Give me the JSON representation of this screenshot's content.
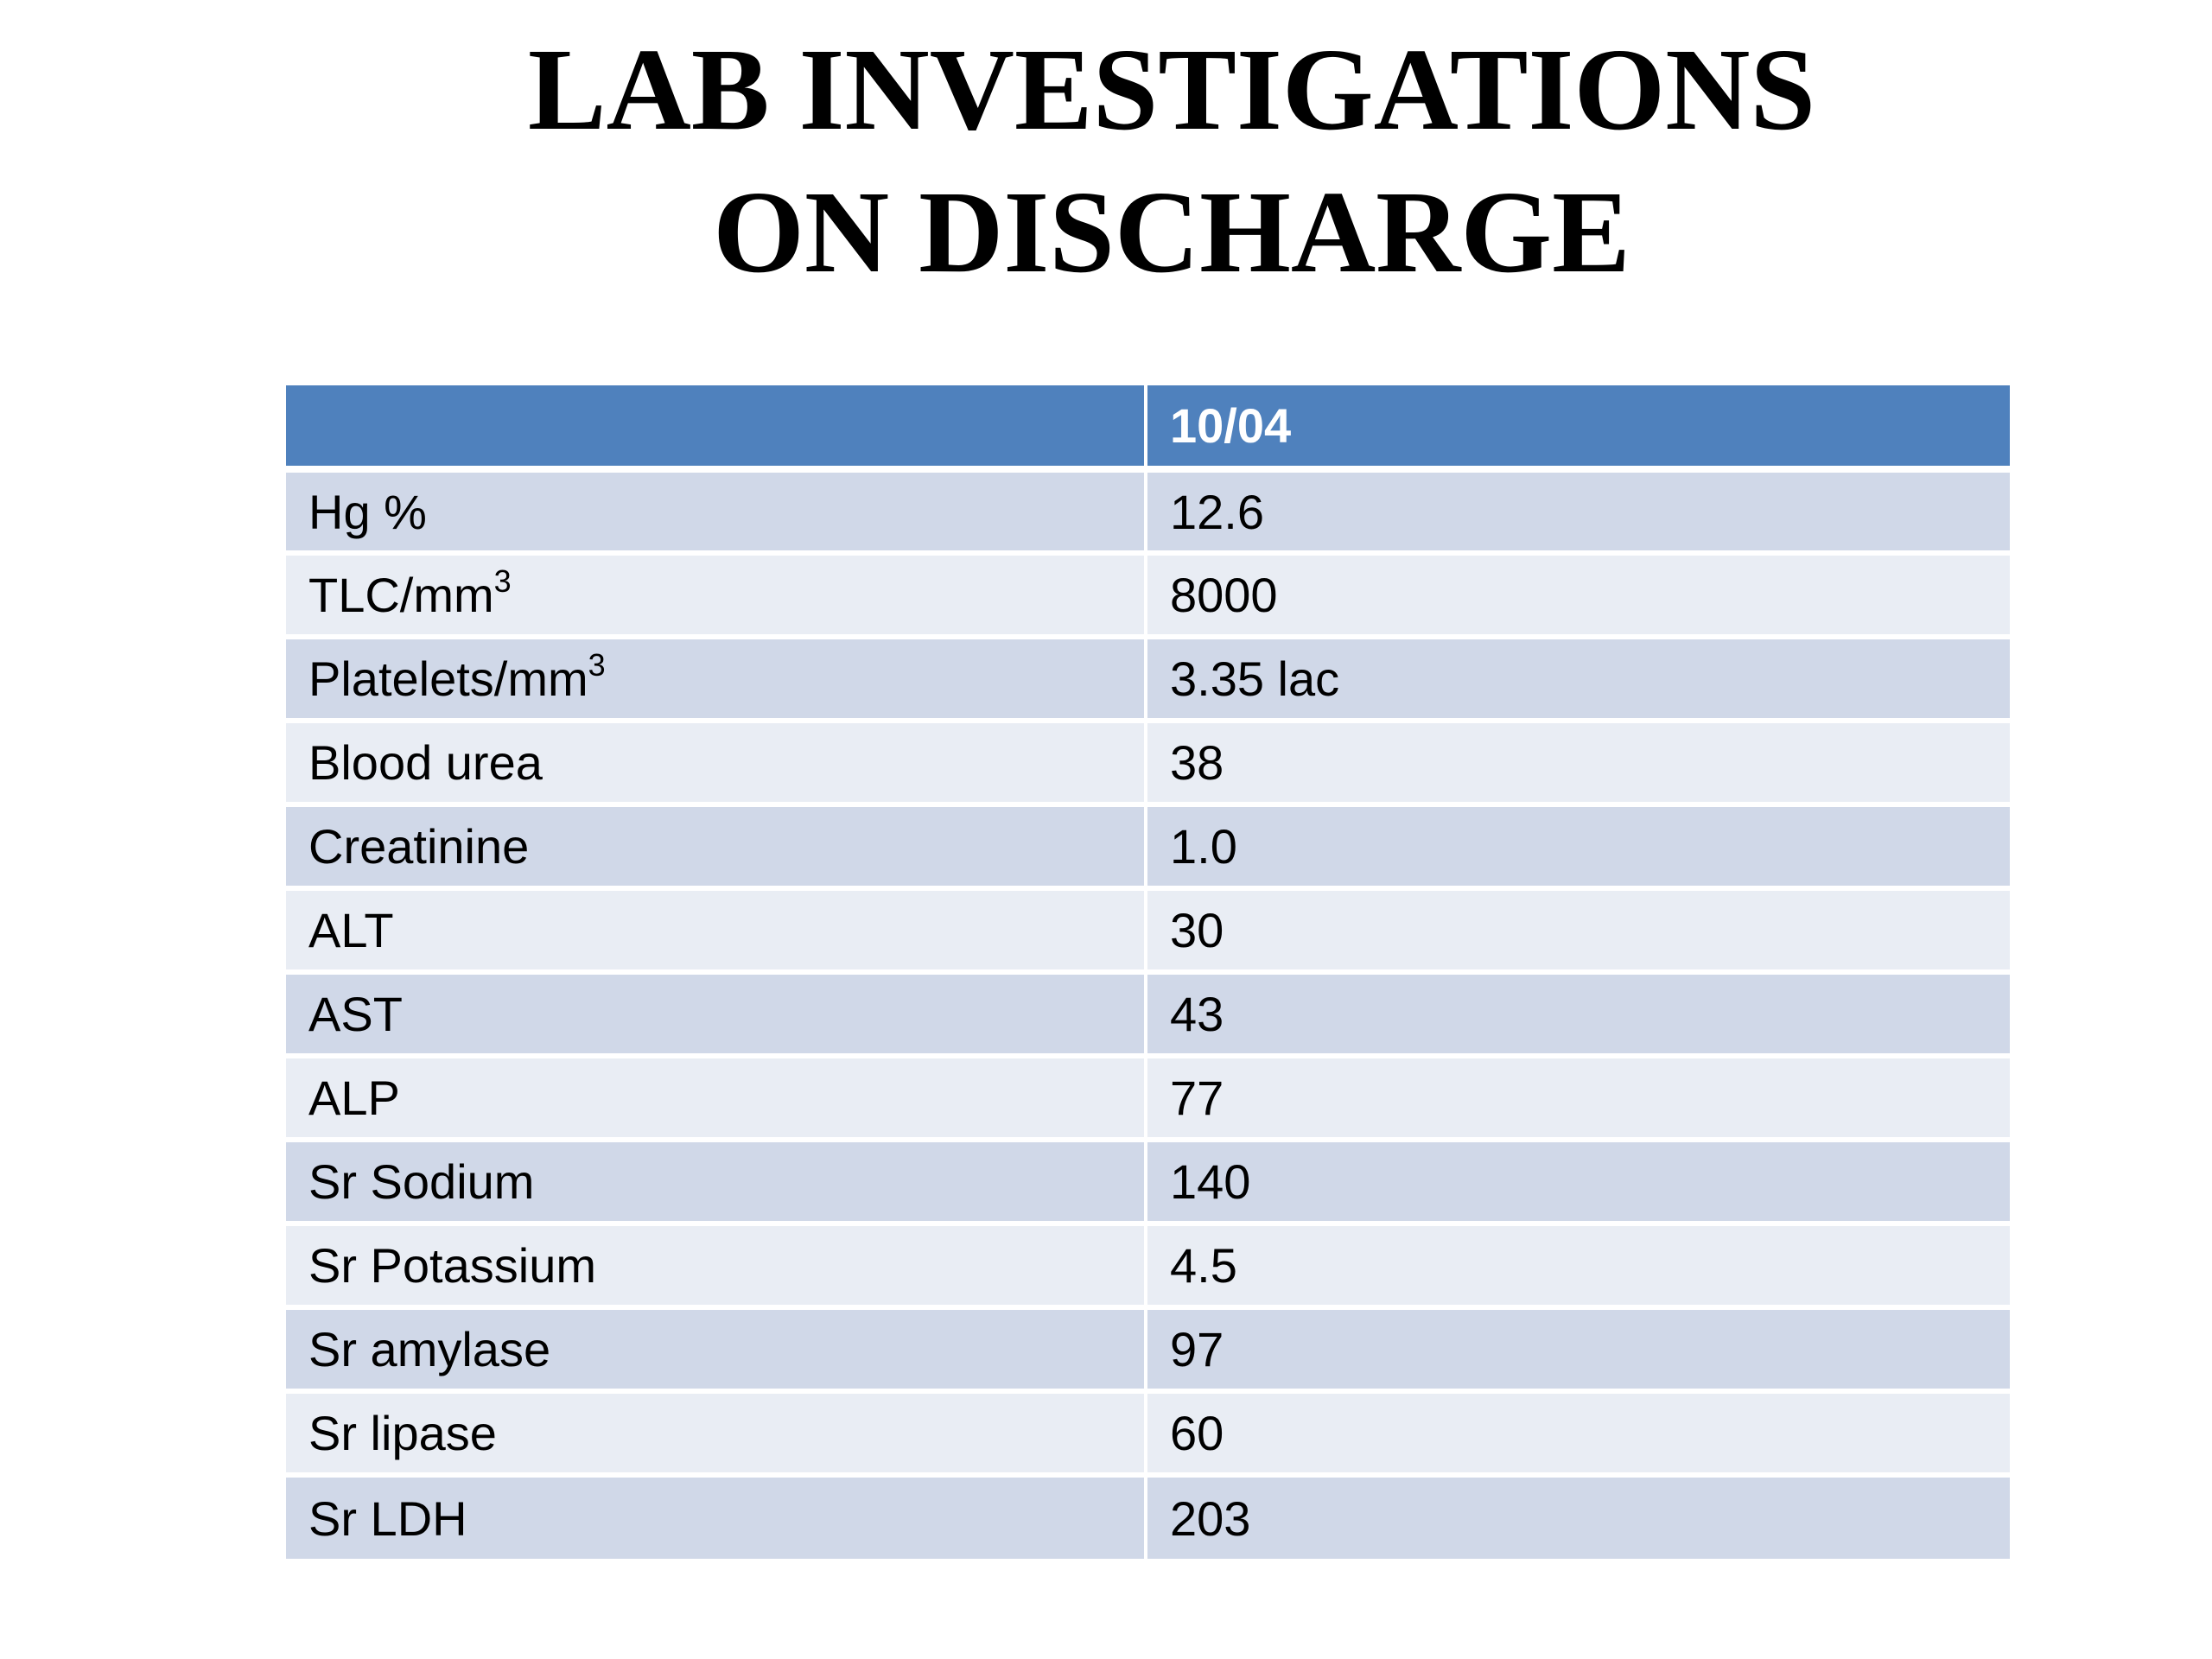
{
  "slide": {
    "title_line1": "LAB INVESTIGATIONS",
    "title_line2": "ON DISCHARGE"
  },
  "table": {
    "header": [
      "",
      "10/04"
    ],
    "rows": [
      {
        "test": "Hg %",
        "sup": "",
        "value": "12.6"
      },
      {
        "test": "TLC/mm",
        "sup": "3",
        "value": "8000"
      },
      {
        "test": "Platelets/mm",
        "sup": "3",
        "value": "3.35 lac"
      },
      {
        "test": "Blood urea",
        "sup": "",
        "value": "38"
      },
      {
        "test": "Creatinine",
        "sup": "",
        "value": "1.0"
      },
      {
        "test": "ALT",
        "sup": "",
        "value": "30"
      },
      {
        "test": "AST",
        "sup": "",
        "value": "43"
      },
      {
        "test": "ALP",
        "sup": "",
        "value": "77"
      },
      {
        "test": "Sr Sodium",
        "sup": "",
        "value": "140"
      },
      {
        "test": "Sr Potassium",
        "sup": "",
        "value": "4.5"
      },
      {
        "test": "Sr amylase",
        "sup": "",
        "value": "97"
      },
      {
        "test": "Sr lipase",
        "sup": "",
        "value": "60"
      },
      {
        "test": "Sr LDH",
        "sup": "",
        "value": "203"
      }
    ]
  },
  "colors": {
    "header_bg": "#4f81bd",
    "row_band_dark": "#d0d8e8",
    "row_band_light": "#e9edf4"
  }
}
